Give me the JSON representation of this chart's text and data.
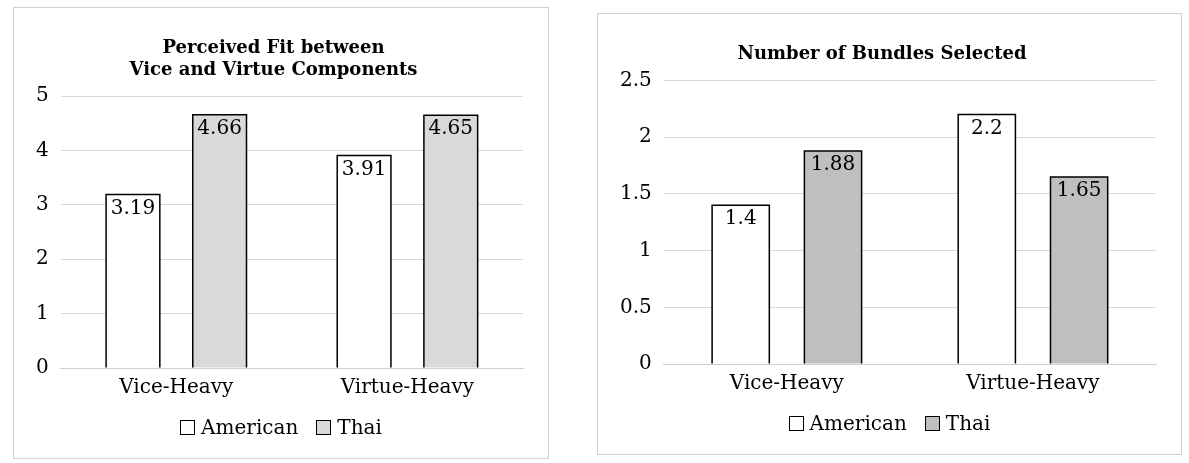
{
  "chart_data": [
    {
      "type": "bar",
      "title": "Perceived Fit between\nVice and Virtue Components",
      "categories": [
        "Vice-Heavy",
        "Virtue-Heavy"
      ],
      "series": [
        {
          "name": "American",
          "color": "#ffffff",
          "values": [
            3.19,
            3.91
          ]
        },
        {
          "name": "Thai",
          "color": "#d9d9d9",
          "values": [
            4.66,
            4.65
          ]
        }
      ],
      "ylim": [
        0,
        5
      ],
      "yticks": [
        0,
        1,
        2,
        3,
        4,
        5
      ],
      "grid": "y",
      "legend": "bottom",
      "data_labels": true
    },
    {
      "type": "bar",
      "title": "Number of Bundles Selected",
      "categories": [
        "Vice-Heavy",
        "Virtue-Heavy"
      ],
      "series": [
        {
          "name": "American",
          "color": "#ffffff",
          "values": [
            1.4,
            2.2
          ]
        },
        {
          "name": "Thai",
          "color": "#bfbfbf",
          "values": [
            1.88,
            1.65
          ]
        }
      ],
      "ylim": [
        0,
        2.5
      ],
      "yticks": [
        0,
        0.5,
        1,
        1.5,
        2,
        2.5
      ],
      "grid": "y",
      "legend": "bottom",
      "data_labels": true
    }
  ]
}
